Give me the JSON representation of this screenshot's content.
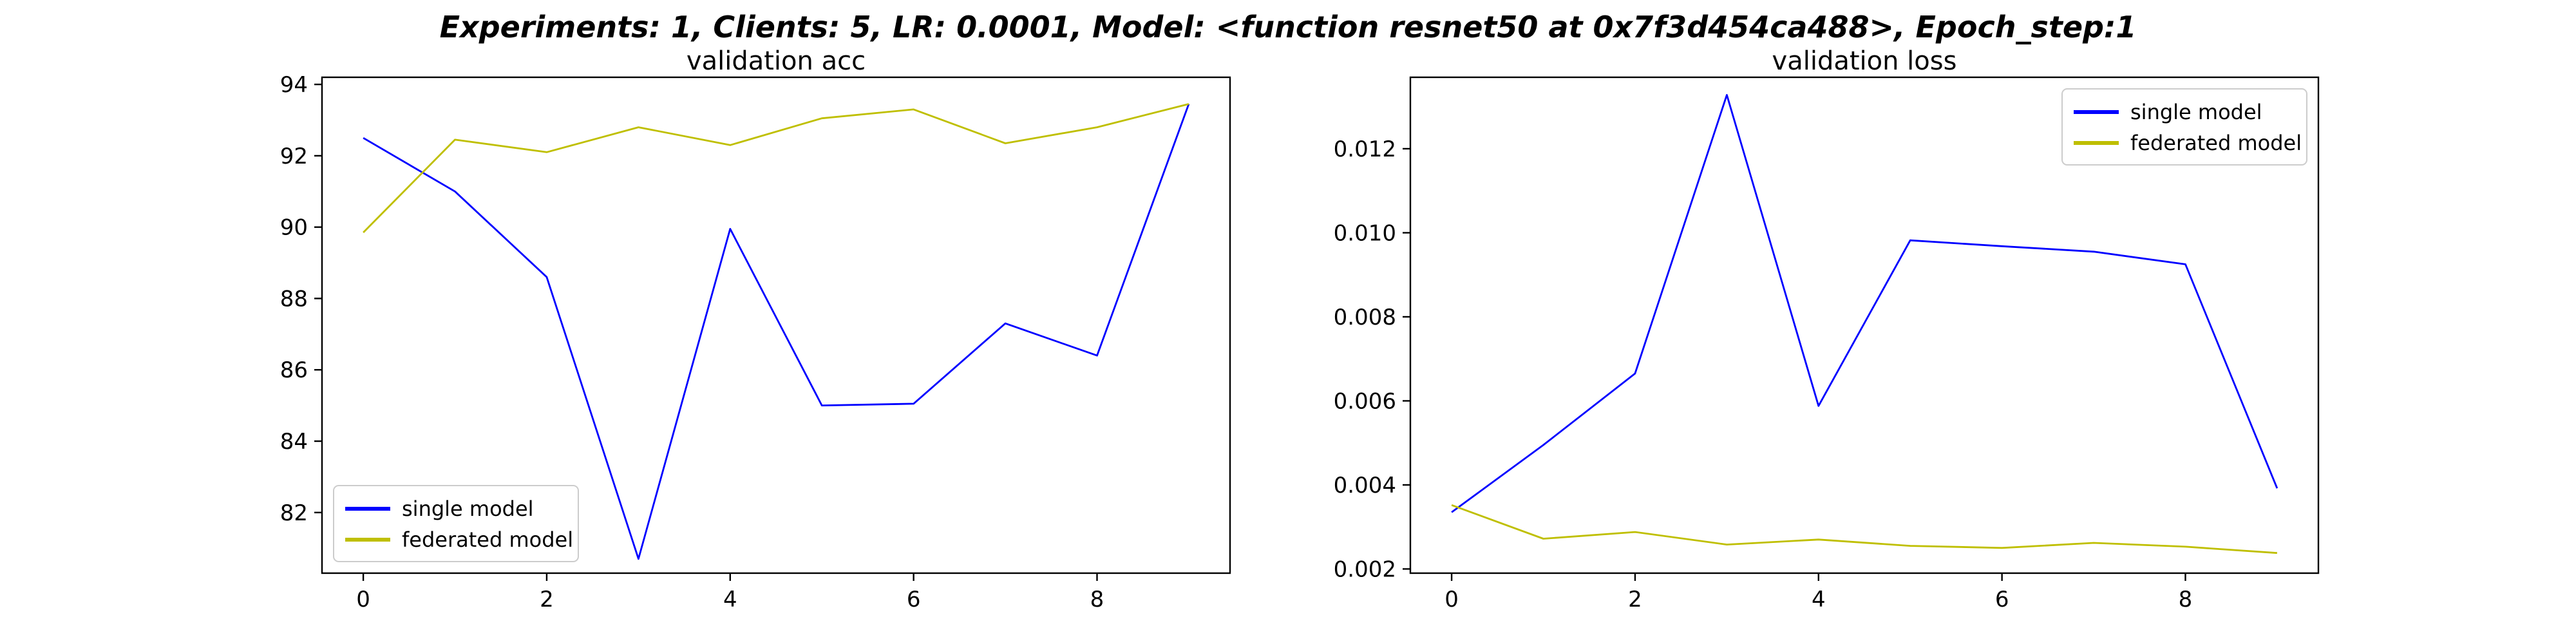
{
  "figure": {
    "suptitle": "Experiments: 1, Clients: 5, LR: 0.0001, Model: <function resnet50 at 0x7f3d454ca488>, Epoch_step:1"
  },
  "chart_data": [
    {
      "type": "line",
      "title": "validation acc",
      "xlabel": "",
      "ylabel": "",
      "x": [
        0,
        1,
        2,
        3,
        4,
        5,
        6,
        7,
        8,
        9
      ],
      "xlim": [
        -0.45,
        9.45
      ],
      "ylim": [
        80.3,
        94.2
      ],
      "xticks": [
        0,
        2,
        4,
        6,
        8
      ],
      "yticks": [
        82,
        84,
        86,
        88,
        90,
        92,
        94
      ],
      "grid": false,
      "legend_position": "lower-left",
      "series": [
        {
          "name": "single model",
          "color": "#0000ff",
          "values": [
            92.5,
            91.0,
            88.6,
            80.7,
            89.95,
            85.0,
            85.05,
            87.3,
            86.4,
            93.45
          ]
        },
        {
          "name": "federated model",
          "color": "#bfbf00",
          "values": [
            89.85,
            92.45,
            92.1,
            92.8,
            92.3,
            93.05,
            93.3,
            92.35,
            92.8,
            93.45
          ]
        }
      ]
    },
    {
      "type": "line",
      "title": "validation loss",
      "xlabel": "",
      "ylabel": "",
      "x": [
        0,
        1,
        2,
        3,
        4,
        5,
        6,
        7,
        8,
        9
      ],
      "xlim": [
        -0.45,
        9.45
      ],
      "ylim": [
        0.0019,
        0.0137
      ],
      "xticks": [
        0,
        2,
        4,
        6,
        8
      ],
      "yticks": [
        0.002,
        0.004,
        0.006,
        0.008,
        0.01,
        0.012
      ],
      "ytick_labels": [
        "0.002",
        "0.004",
        "0.006",
        "0.008",
        "0.010",
        "0.012"
      ],
      "grid": false,
      "legend_position": "upper-right",
      "series": [
        {
          "name": "single model",
          "color": "#0000ff",
          "values": [
            0.00335,
            0.00495,
            0.00665,
            0.01328,
            0.00588,
            0.00982,
            0.00968,
            0.00955,
            0.00925,
            0.00392
          ]
        },
        {
          "name": "federated model",
          "color": "#bfbf00",
          "values": [
            0.00352,
            0.00272,
            0.00288,
            0.00258,
            0.0027,
            0.00255,
            0.0025,
            0.00262,
            0.00253,
            0.00238
          ]
        }
      ]
    }
  ]
}
